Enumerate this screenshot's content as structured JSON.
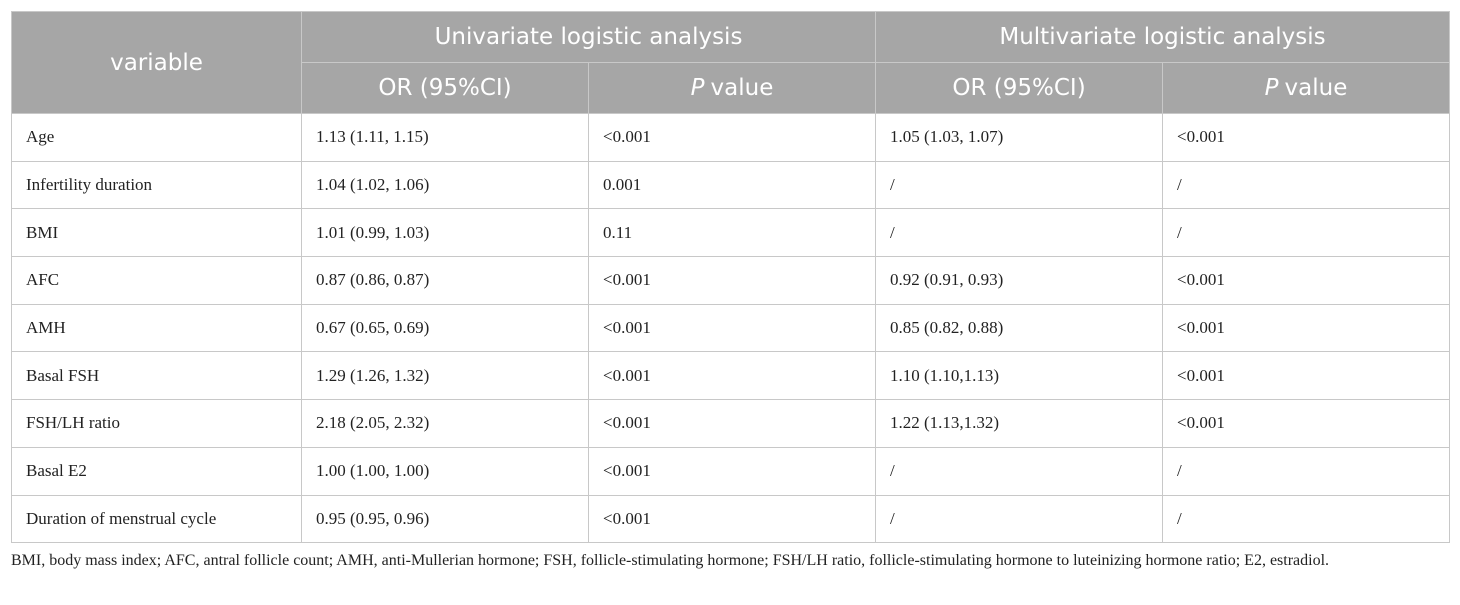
{
  "table": {
    "header": {
      "variable": "variable",
      "groups": [
        "Univariate logistic analysis",
        "Multivariate logistic analysis"
      ],
      "subheaders": [
        {
          "text": "OR (95%CI)"
        },
        {
          "italic": "P",
          "text": "value"
        },
        {
          "text": "OR (95%CI)"
        },
        {
          "italic": "P",
          "text": "value"
        }
      ]
    },
    "rows": [
      [
        "Age",
        "1.13 (1.11, 1.15)",
        "<0.001",
        "1.05 (1.03, 1.07)",
        "<0.001"
      ],
      [
        "Infertility duration",
        "1.04 (1.02, 1.06)",
        "0.001",
        "/",
        "/"
      ],
      [
        "BMI",
        "1.01 (0.99, 1.03)",
        "0.11",
        "/",
        "/"
      ],
      [
        "AFC",
        "0.87 (0.86, 0.87)",
        "<0.001",
        "0.92 (0.91, 0.93)",
        "<0.001"
      ],
      [
        "AMH",
        "0.67 (0.65, 0.69)",
        "<0.001",
        "0.85 (0.82, 0.88)",
        "<0.001"
      ],
      [
        "Basal FSH",
        "1.29 (1.26, 1.32)",
        "<0.001",
        "1.10 (1.10,1.13)",
        "<0.001"
      ],
      [
        "FSH/LH ratio",
        "2.18 (2.05, 2.32)",
        "<0.001",
        "1.22 (1.13,1.32)",
        "<0.001"
      ],
      [
        "Basal E2",
        "1.00 (1.00, 1.00)",
        "<0.001",
        "/",
        "/"
      ],
      [
        "Duration of menstrual cycle",
        "0.95 (0.95, 0.96)",
        "<0.001",
        "/",
        "/"
      ]
    ],
    "footnote": "BMI, body mass index; AFC, antral follicle count; AMH, anti-Mullerian hormone; FSH, follicle-stimulating hormone; FSH/LH ratio, follicle-stimulating hormone to luteinizing hormone ratio; E2, estradiol."
  }
}
